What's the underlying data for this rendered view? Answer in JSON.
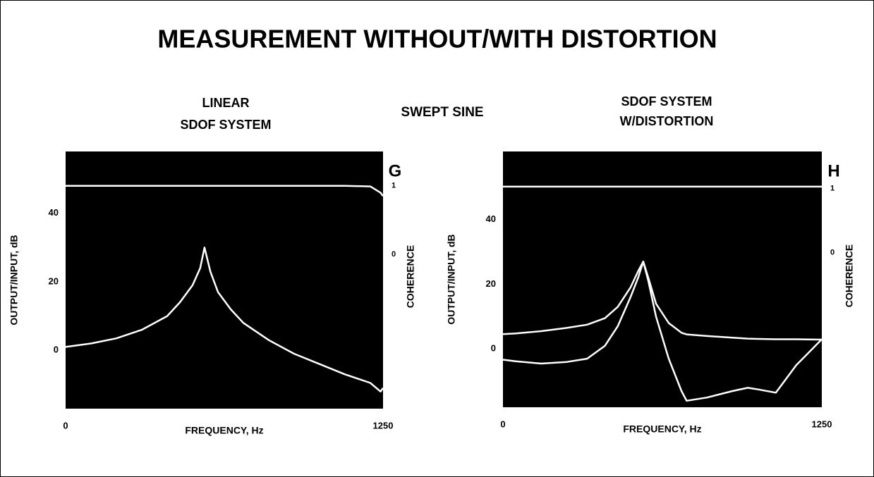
{
  "title": "MEASUREMENT WITHOUT/WITH DISTORTION",
  "subtitle": "SWEPT SINE",
  "chart_data": [
    {
      "type": "line",
      "title": [
        "LINEAR",
        "SDOF SYSTEM"
      ],
      "label": "G",
      "xlabel": "FREQUENCY, Hz",
      "ylabel": "OUTPUT/INPUT, dB",
      "y2label": "COHERENCE",
      "xlim": [
        0,
        1250
      ],
      "xticks": [
        0,
        1250
      ],
      "ylim": [
        -17,
        58
      ],
      "yticks": [
        0,
        20,
        40
      ],
      "y2lim": [
        -2.25,
        1.5
      ],
      "y2ticks": [
        0,
        1
      ],
      "x": [
        0,
        100,
        200,
        300,
        400,
        450,
        500,
        530,
        547,
        570,
        600,
        650,
        700,
        800,
        900,
        1000,
        1100,
        1200,
        1240,
        1250
      ],
      "series": [
        {
          "color": "#ffffff",
          "values": [
            1,
            2,
            3.5,
            6,
            10,
            14,
            19,
            24,
            30,
            23,
            17,
            12,
            8,
            3,
            -1,
            -4,
            -7,
            -9.5,
            -12,
            -11
          ]
        },
        {
          "color": "#ffffff",
          "axis": "y2",
          "values": [
            1,
            1,
            1,
            1,
            1,
            1,
            1,
            1,
            1,
            1,
            1,
            1,
            1,
            1,
            1,
            1,
            1,
            0.99,
            0.9,
            0.85
          ]
        }
      ]
    },
    {
      "type": "line",
      "title": [
        "SDOF SYSTEM",
        "W/DISTORTION"
      ],
      "label": "H",
      "xlabel": "FREQUENCY, Hz",
      "ylabel": "OUTPUT/INPUT, dB",
      "y2label": "COHERENCE",
      "xlim": [
        0,
        1250
      ],
      "xticks": [
        0,
        1250
      ],
      "ylim": [
        -18,
        61
      ],
      "yticks": [
        0,
        20,
        40
      ],
      "y2lim": [
        -2.42,
        1.58
      ],
      "y2ticks": [
        0,
        1
      ],
      "x": [
        0,
        50,
        150,
        250,
        330,
        400,
        450,
        500,
        530,
        550,
        570,
        600,
        650,
        700,
        720,
        800,
        900,
        960,
        1000,
        1070,
        1150,
        1250
      ],
      "series": [
        {
          "color": "#ffffff",
          "values": [
            4.6,
            4.8,
            5.5,
            6.5,
            7.5,
            9.5,
            13,
            19,
            24,
            27,
            22,
            14,
            8,
            5,
            4.5,
            4,
            3.5,
            3.2,
            3.1,
            3,
            3,
            2.9
          ]
        },
        {
          "color": "#ffffff",
          "values": [
            -3.3,
            -3.8,
            -4.5,
            -4,
            -3,
            1,
            7,
            16,
            22,
            27,
            21,
            10,
            -3,
            -13,
            -16,
            -15,
            -13,
            -12,
            -12.5,
            -13.5,
            -5,
            3
          ]
        },
        {
          "color": "#ffffff",
          "axis": "y2",
          "values": [
            1.03,
            1.03,
            1.03,
            1.03,
            1.03,
            1.03,
            1.03,
            1.03,
            1.03,
            1.03,
            1.03,
            1.03,
            1.03,
            1.03,
            1.03,
            1.03,
            1.03,
            1.03,
            1.03,
            1.03,
            1.03,
            1.03
          ]
        }
      ]
    }
  ]
}
